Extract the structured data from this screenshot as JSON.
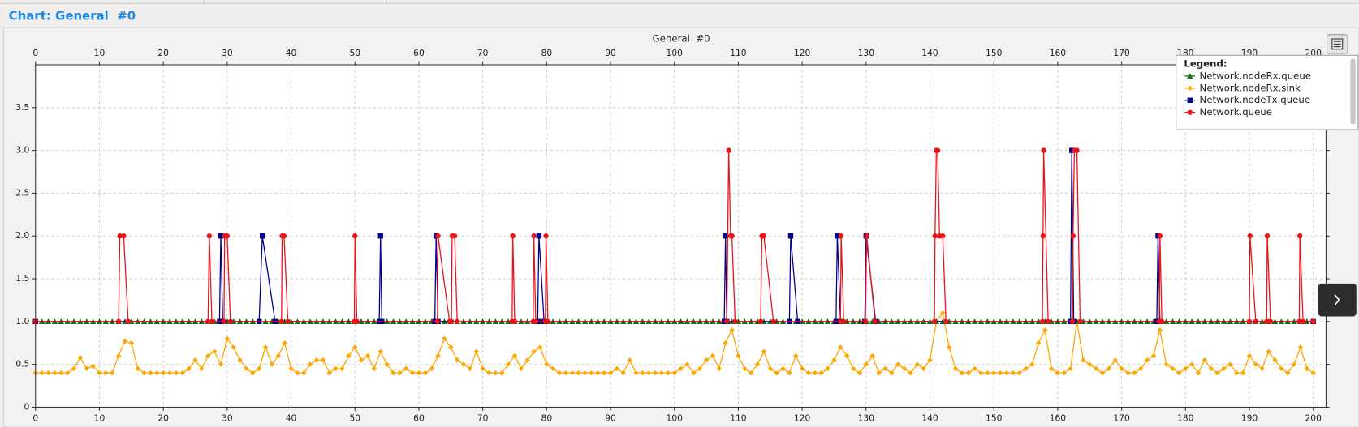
{
  "header": {
    "title": "Chart: General  #0"
  },
  "chart_data": {
    "type": "line",
    "title": "General  #0",
    "legend_title": "Legend:",
    "legend_position": "top-right",
    "grid": true,
    "xlim": [
      0,
      202
    ],
    "ylim": [
      0,
      4
    ],
    "xticks": [
      0,
      10,
      20,
      30,
      40,
      50,
      60,
      70,
      80,
      90,
      100,
      110,
      120,
      130,
      140,
      150,
      160,
      170,
      180,
      190,
      200
    ],
    "yticks": [
      0,
      0.5,
      {
        "value": 1,
        "label": "1.0"
      },
      1.5,
      {
        "value": 2,
        "label": "2.0"
      },
      2.5,
      {
        "value": 3,
        "label": "3.0"
      },
      3.5
    ],
    "x": [
      0,
      1,
      2,
      3,
      4,
      5,
      6,
      7,
      8,
      9,
      10,
      11,
      12,
      13,
      14,
      15,
      16,
      17,
      18,
      19,
      20,
      21,
      22,
      23,
      24,
      25,
      26,
      27,
      28,
      29,
      30,
      31,
      32,
      33,
      34,
      35,
      36,
      37,
      38,
      39,
      40,
      41,
      42,
      43,
      44,
      45,
      46,
      47,
      48,
      49,
      50,
      51,
      52,
      53,
      54,
      55,
      56,
      57,
      58,
      59,
      60,
      61,
      62,
      63,
      64,
      65,
      66,
      67,
      68,
      69,
      70,
      71,
      72,
      73,
      74,
      75,
      76,
      77,
      78,
      79,
      80,
      81,
      82,
      83,
      84,
      85,
      86,
      87,
      88,
      89,
      90,
      91,
      92,
      93,
      94,
      95,
      96,
      97,
      98,
      99,
      100,
      101,
      102,
      103,
      104,
      105,
      106,
      107,
      108,
      109,
      110,
      111,
      112,
      113,
      114,
      115,
      116,
      117,
      118,
      119,
      120,
      121,
      122,
      123,
      124,
      125,
      126,
      127,
      128,
      129,
      130,
      131,
      132,
      133,
      134,
      135,
      136,
      137,
      138,
      139,
      140,
      141,
      142,
      143,
      144,
      145,
      146,
      147,
      148,
      149,
      150,
      151,
      152,
      153,
      154,
      155,
      156,
      157,
      158,
      159,
      160,
      161,
      162,
      163,
      164,
      165,
      166,
      167,
      168,
      169,
      170,
      171,
      172,
      173,
      174,
      175,
      176,
      177,
      178,
      179,
      180,
      181,
      182,
      183,
      184,
      185,
      186,
      187,
      188,
      189,
      190,
      191,
      192,
      193,
      194,
      195,
      196,
      197,
      198,
      199,
      200
    ],
    "series": [
      {
        "name": "Network.nodeRx.sink",
        "color": "#ffa500",
        "marker": "diamond",
        "values": [
          0.4,
          0.4,
          0.4,
          0.4,
          0.4,
          0.4,
          0.45,
          0.58,
          0.45,
          0.48,
          0.4,
          0.4,
          0.4,
          0.6,
          0.77,
          0.75,
          0.45,
          0.4,
          0.4,
          0.4,
          0.4,
          0.4,
          0.4,
          0.4,
          0.45,
          0.55,
          0.45,
          0.6,
          0.65,
          0.5,
          0.8,
          0.7,
          0.55,
          0.45,
          0.4,
          0.45,
          0.7,
          0.5,
          0.6,
          0.75,
          0.45,
          0.4,
          0.4,
          0.5,
          0.55,
          0.55,
          0.4,
          0.45,
          0.45,
          0.6,
          0.7,
          0.55,
          0.6,
          0.45,
          0.65,
          0.5,
          0.4,
          0.4,
          0.45,
          0.4,
          0.4,
          0.4,
          0.45,
          0.6,
          0.8,
          0.7,
          0.55,
          0.5,
          0.45,
          0.65,
          0.45,
          0.4,
          0.4,
          0.4,
          0.5,
          0.6,
          0.45,
          0.55,
          0.65,
          0.7,
          0.5,
          0.45,
          0.4,
          0.4,
          0.4,
          0.4,
          0.4,
          0.4,
          0.4,
          0.4,
          0.4,
          0.45,
          0.4,
          0.55,
          0.4,
          0.4,
          0.4,
          0.4,
          0.4,
          0.4,
          0.4,
          0.45,
          0.5,
          0.4,
          0.45,
          0.55,
          0.6,
          0.45,
          0.75,
          0.9,
          0.6,
          0.45,
          0.4,
          0.5,
          0.65,
          0.45,
          0.4,
          0.45,
          0.4,
          0.6,
          0.45,
          0.4,
          0.4,
          0.4,
          0.45,
          0.55,
          0.7,
          0.6,
          0.45,
          0.4,
          0.5,
          0.6,
          0.4,
          0.45,
          0.4,
          0.5,
          0.45,
          0.4,
          0.5,
          0.45,
          0.55,
          1.0,
          1.1,
          0.7,
          0.45,
          0.4,
          0.4,
          0.45,
          0.4,
          0.4,
          0.4,
          0.4,
          0.4,
          0.4,
          0.4,
          0.45,
          0.5,
          0.75,
          0.9,
          0.45,
          0.4,
          0.4,
          0.45,
          1.0,
          0.55,
          0.5,
          0.45,
          0.4,
          0.45,
          0.55,
          0.45,
          0.4,
          0.4,
          0.45,
          0.55,
          0.6,
          0.9,
          0.5,
          0.45,
          0.4,
          0.45,
          0.5,
          0.4,
          0.55,
          0.45,
          0.4,
          0.45,
          0.5,
          0.4,
          0.4,
          0.6,
          0.5,
          0.45,
          0.65,
          0.55,
          0.45,
          0.4,
          0.5,
          0.7,
          0.45,
          0.4
        ]
      },
      {
        "name": "Network.nodeRx.queue",
        "color": "#1a6b1a",
        "marker": "triangle",
        "values": [
          1,
          1,
          1,
          1,
          1,
          1,
          1,
          1,
          1,
          1,
          1,
          1,
          1,
          1,
          1,
          1,
          1,
          1,
          1,
          1,
          1,
          1,
          1,
          1,
          1,
          1,
          1,
          1,
          1,
          1,
          1,
          1,
          1,
          1,
          1,
          1,
          1,
          1,
          1,
          1,
          1,
          1,
          1,
          1,
          1,
          1,
          1,
          1,
          1,
          1,
          1,
          1,
          1,
          1,
          1,
          1,
          1,
          1,
          1,
          1,
          1,
          1,
          1,
          1,
          1,
          1,
          1,
          1,
          1,
          1,
          1,
          1,
          1,
          1,
          1,
          1,
          1,
          1,
          1,
          1,
          1,
          1,
          1,
          1,
          1,
          1,
          1,
          1,
          1,
          1,
          1,
          1,
          1,
          1,
          1,
          1,
          1,
          1,
          1,
          1,
          1,
          1,
          1,
          1,
          1,
          1,
          1,
          1,
          1,
          1,
          1,
          1,
          1,
          1,
          1,
          1,
          1,
          1,
          1,
          1,
          1,
          1,
          1,
          1,
          1,
          1,
          1,
          1,
          1,
          1,
          1,
          1,
          1,
          1,
          1,
          1,
          1,
          1,
          1,
          1,
          1,
          1,
          1,
          1,
          1,
          1,
          1,
          1,
          1,
          1,
          1,
          1,
          1,
          1,
          1,
          1,
          1,
          1,
          1,
          1,
          1,
          1,
          1,
          1,
          1,
          1,
          1,
          1,
          1,
          1,
          1,
          1,
          1,
          1,
          1,
          1,
          1,
          1,
          1,
          1,
          1,
          1,
          1,
          1,
          1,
          1,
          1,
          1,
          1,
          1,
          1,
          1,
          1,
          1,
          1,
          1,
          1,
          1,
          1,
          1,
          1
        ]
      },
      {
        "name": "Network.nodeTx.queue",
        "color": "#00008b",
        "marker": "square",
        "x": [
          0,
          28.8,
          29,
          29.3,
          35,
          35.5,
          37.5,
          53.8,
          54,
          54.2,
          62.5,
          62.7,
          63,
          78.6,
          78.8,
          79.6,
          107.8,
          108,
          108.2,
          118,
          118.2,
          119.3,
          125.3,
          125.5,
          126,
          129.8,
          130,
          131.5,
          162,
          162.2,
          162.5,
          175.5,
          175.7,
          176,
          200
        ],
        "values": [
          1,
          1,
          2,
          1,
          1,
          2,
          1,
          1,
          2,
          1,
          1,
          2,
          1,
          1,
          2,
          1,
          1,
          2,
          1,
          1,
          2,
          1,
          1,
          2,
          1,
          1,
          2,
          1,
          1,
          3,
          1,
          1,
          2,
          1,
          1
        ]
      },
      {
        "name": "Network.queue",
        "color": "#e8141a",
        "marker": "circle",
        "x": [
          0,
          13,
          13.2,
          13.8,
          14.5,
          27,
          27.2,
          27.6,
          29.5,
          29.6,
          30,
          30.5,
          38.5,
          38.6,
          38.9,
          39.5,
          49.9,
          50,
          50.3,
          62.9,
          63,
          64.8,
          65.1,
          65.2,
          65.6,
          66,
          74.6,
          74.7,
          75,
          77.9,
          78,
          78.3,
          79.8,
          79.9,
          80.2,
          108.2,
          108.5,
          108.8,
          109,
          109.5,
          113.5,
          113.7,
          114,
          115.5,
          126,
          126.1,
          126.5,
          129.9,
          130.1,
          131.4,
          140.7,
          140.8,
          141,
          141.2,
          141.5,
          142,
          142.5,
          157.6,
          157.7,
          157.8,
          158.5,
          162.3,
          162.4,
          162.6,
          163,
          163.5,
          175.9,
          176,
          176.3,
          190,
          190.1,
          191,
          192.7,
          192.8,
          193.3,
          197.8,
          197.9,
          198.4,
          200
        ],
        "values": [
          1,
          1,
          2,
          2,
          1,
          1,
          2,
          1,
          1,
          2,
          2,
          1,
          1,
          2,
          2,
          1,
          1,
          2,
          1,
          1,
          2,
          1,
          1,
          2,
          2,
          1,
          1,
          2,
          1,
          1,
          2,
          1,
          1,
          2,
          1,
          1,
          3,
          2,
          2,
          1,
          1,
          2,
          2,
          1,
          1,
          2,
          1,
          1,
          2,
          1,
          1,
          2,
          3,
          3,
          2,
          2,
          1,
          1,
          2,
          3,
          1,
          1,
          2,
          3,
          3,
          1,
          1,
          2,
          1,
          1,
          2,
          1,
          1,
          2,
          1,
          1,
          2,
          1,
          1
        ]
      }
    ],
    "legend_order": [
      1,
      0,
      2,
      3
    ]
  }
}
